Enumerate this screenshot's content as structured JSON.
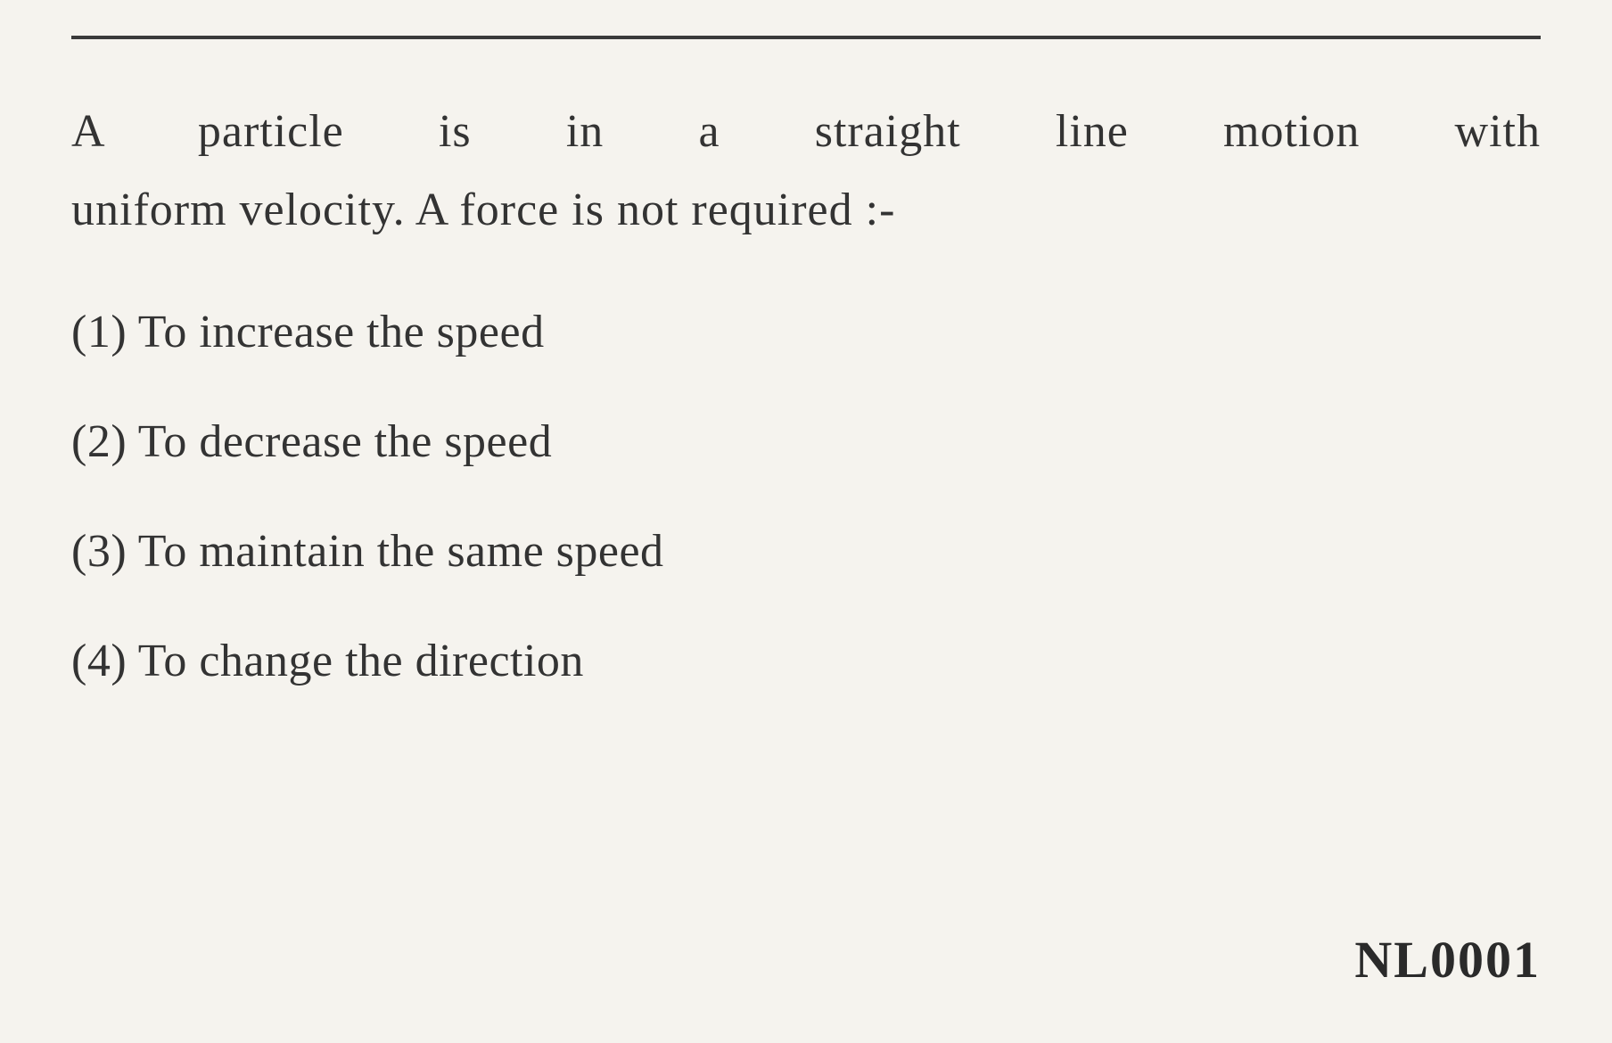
{
  "question": {
    "line1": "A  particle  is  in  a  straight  line  motion  with",
    "line2": "uniform velocity. A force is not required :-",
    "options": [
      {
        "number": "(1)",
        "text": "To increase the speed"
      },
      {
        "number": "(2)",
        "text": "To decrease the speed"
      },
      {
        "number": "(3)",
        "text": "To maintain the same speed"
      },
      {
        "number": "(4)",
        "text": "To change the direction"
      }
    ],
    "code": "NL0001"
  },
  "styling": {
    "background_color": "#f5f3ee",
    "text_color": "#2a2a2a",
    "border_color": "#3a3a3a",
    "font_family": "Georgia, serif",
    "question_fontsize": 52,
    "option_fontsize": 52,
    "code_fontsize": 58,
    "line_height": 1.7
  }
}
